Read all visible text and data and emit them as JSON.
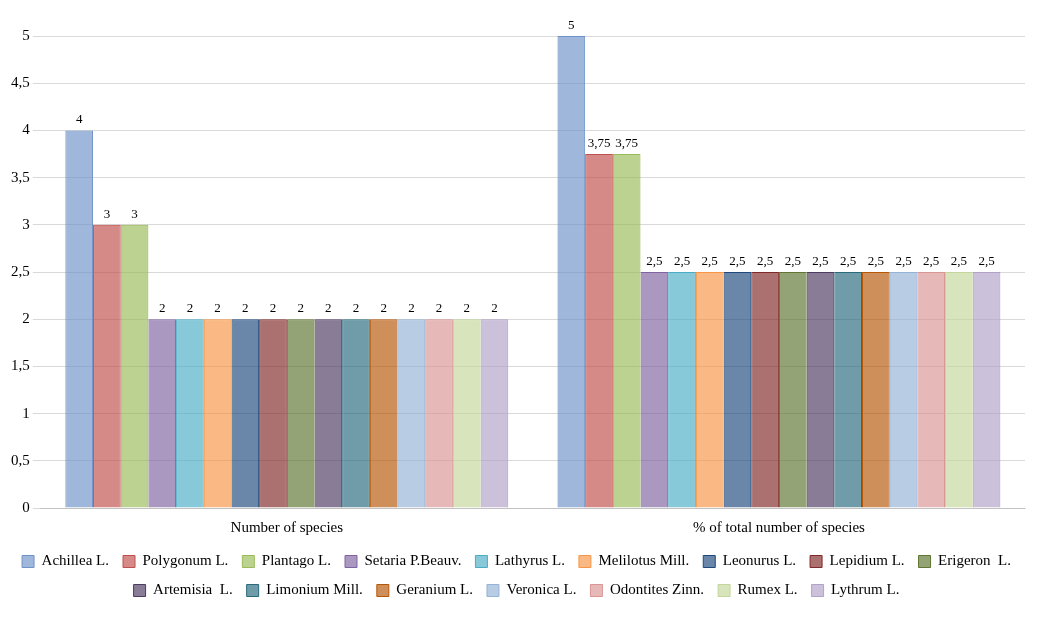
{
  "chart_data": {
    "type": "bar",
    "categories": [
      "Number of species",
      "% of total number of species"
    ],
    "ylim": [
      0,
      5
    ],
    "yticks": [
      0,
      {
        "value": 0.5,
        "label": "0,5"
      },
      1,
      {
        "value": 1.5,
        "label": "1,5"
      },
      2,
      {
        "value": 2.5,
        "label": "2,5"
      },
      3,
      {
        "value": 3.5,
        "label": "3,5"
      },
      4,
      {
        "value": 4.5,
        "label": "4,5"
      },
      5
    ],
    "grid": "y",
    "legend": "bottom",
    "series": [
      {
        "name": "Achillea L.",
        "color": "#6f93c8",
        "values": [
          4,
          5
        ],
        "value_labels": [
          "4",
          "5"
        ]
      },
      {
        "name": "Polygonum L.",
        "color": "#c0504d",
        "values": [
          3,
          3.75
        ],
        "value_labels": [
          "3",
          "3,75"
        ]
      },
      {
        "name": "Plantago L.",
        "color": "#9bbb59",
        "values": [
          3,
          3.75
        ],
        "value_labels": [
          "3",
          "3,75"
        ]
      },
      {
        "name": "Setaria P.Beauv.",
        "color": "#8064a2",
        "values": [
          2,
          2.5
        ],
        "value_labels": [
          "2",
          "2,5"
        ]
      },
      {
        "name": "Lathyrus L.",
        "color": "#4bacc6",
        "values": [
          2,
          2.5
        ],
        "value_labels": [
          "2",
          "2,5"
        ]
      },
      {
        "name": "Melilotus Mill.",
        "color": "#f79646",
        "values": [
          2,
          2.5
        ],
        "value_labels": [
          "2",
          "2,5"
        ]
      },
      {
        "name": "Leonurus L.",
        "color": "#1f497d",
        "values": [
          2,
          2.5
        ],
        "value_labels": [
          "2",
          "2,5"
        ]
      },
      {
        "name": "Lepidium L.",
        "color": "#7f2a28",
        "values": [
          2,
          2.5
        ],
        "value_labels": [
          "2",
          "2,5"
        ]
      },
      {
        "name": "Erigeron  L.",
        "color": "#5f7530",
        "values": [
          2,
          2.5
        ],
        "value_labels": [
          "2",
          "2,5"
        ]
      },
      {
        "name": "Artemisia  L.",
        "color": "#4d3b62",
        "values": [
          2,
          2.5
        ],
        "value_labels": [
          "2",
          "2,5"
        ]
      },
      {
        "name": "Limonium Mill.",
        "color": "#276a7c",
        "values": [
          2,
          2.5
        ],
        "value_labels": [
          "2",
          "2,5"
        ]
      },
      {
        "name": "Geranium L.",
        "color": "#b65708",
        "values": [
          2,
          2.5
        ],
        "value_labels": [
          "2",
          "2,5"
        ]
      },
      {
        "name": "Veronica L.",
        "color": "#95b3d7",
        "values": [
          2,
          2.5
        ],
        "value_labels": [
          "2",
          "2,5"
        ]
      },
      {
        "name": "Odontites Zinn.",
        "color": "#d99694",
        "values": [
          2,
          2.5
        ],
        "value_labels": [
          "2",
          "2,5"
        ]
      },
      {
        "name": "Rumex L.",
        "color": "#c3d69b",
        "values": [
          2,
          2.5
        ],
        "value_labels": [
          "2",
          "2,5"
        ]
      },
      {
        "name": "Lythrum L.",
        "color": "#b3a2c7",
        "values": [
          2,
          2.5
        ],
        "value_labels": [
          "2",
          "2,5"
        ]
      }
    ]
  }
}
